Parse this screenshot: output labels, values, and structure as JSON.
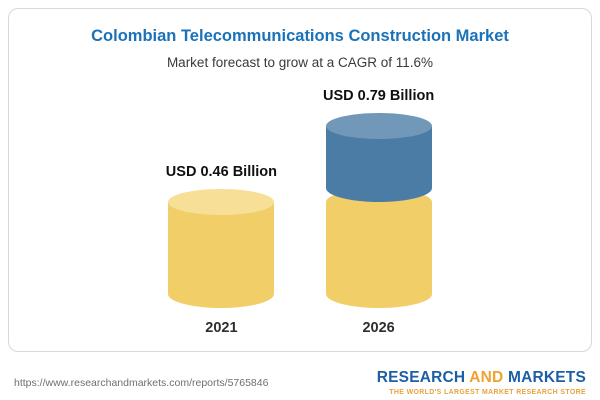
{
  "chart_data": {
    "type": "bar",
    "subtype": "3d-cylinder",
    "title": "Colombian Telecommunications Construction Market",
    "subtitle": "Market forecast to grow at a CAGR of 11.6%",
    "categories": [
      "2021",
      "2026"
    ],
    "values": [
      0.46,
      0.79
    ],
    "value_labels": [
      "USD 0.46 Billion",
      "USD 0.79 Billion"
    ],
    "ylim": [
      0,
      0.85
    ],
    "legend": "none",
    "grid": "off",
    "colors": {
      "base": "#f2ce69",
      "growth": "#4a7ca5"
    },
    "bars": [
      {
        "category": "2021",
        "value": 0.46,
        "label": "USD 0.46 Billion",
        "segments": [
          {
            "value": 0.46,
            "color": "#f2ce69",
            "cap_color": "#f7df97"
          }
        ]
      },
      {
        "category": "2026",
        "value": 0.79,
        "label": "USD 0.79 Billion",
        "segments": [
          {
            "value": 0.46,
            "color": "#f2ce69",
            "cap_color": "#f2ce69"
          },
          {
            "value": 0.33,
            "color": "#4a7ca5",
            "cap_color": "#7298b9"
          }
        ]
      }
    ]
  },
  "footer": {
    "url": "https://www.researchandmarkets.com/reports/5765846",
    "logo": {
      "part1": "RESEARCH",
      "part2": "AND",
      "part3": "MARKETS",
      "tagline": "THE WORLD'S LARGEST MARKET RESEARCH STORE"
    }
  }
}
